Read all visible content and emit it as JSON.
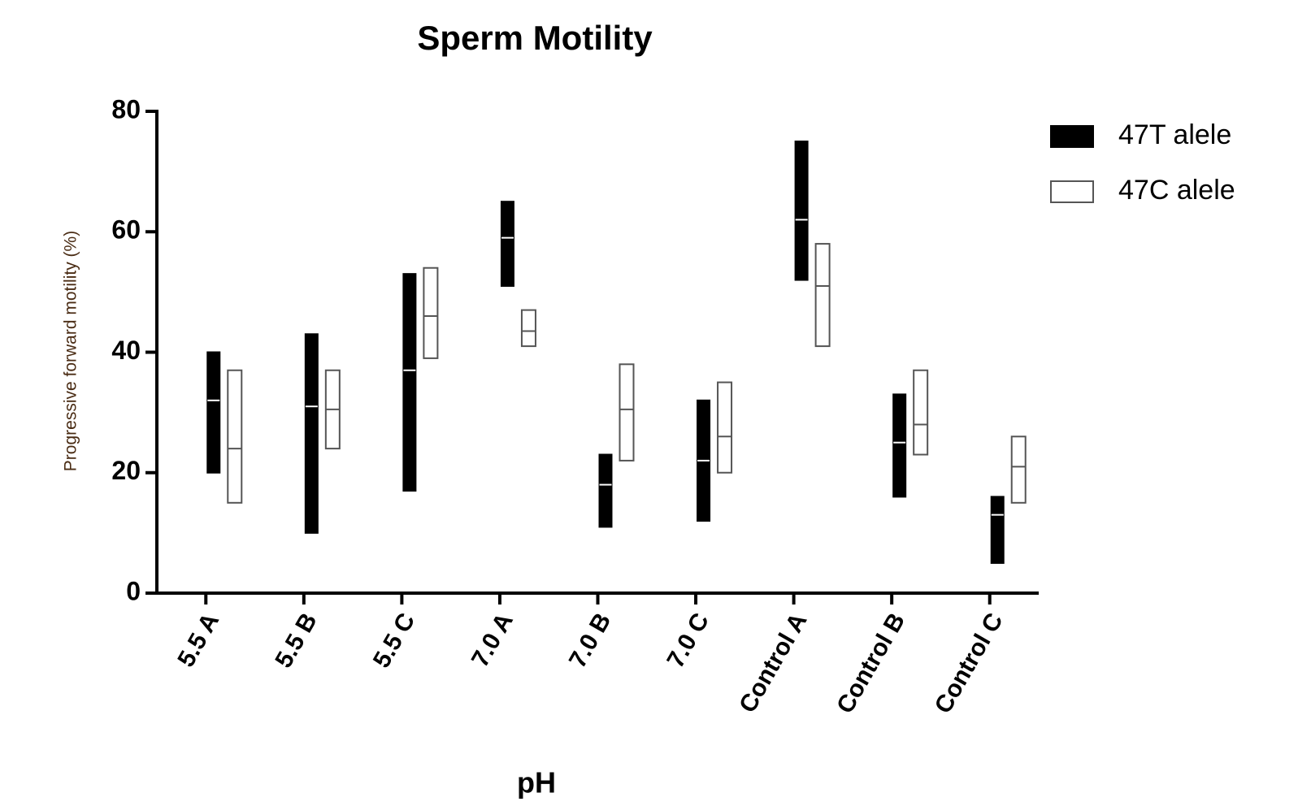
{
  "chart_data": {
    "type": "floating_bar",
    "title": "Sperm Motility",
    "x_label": "pH",
    "y_label": "Progressive forward motility (%)",
    "categories": [
      "5.5 A",
      "5.5 B",
      "5.5 C",
      "7.0 A",
      "7.0 B",
      "7.0 C",
      "Control A",
      "Control B",
      "Control C"
    ],
    "series": [
      {
        "name": "47T alele",
        "color": "#000000",
        "low": [
          20,
          10,
          17,
          51,
          11,
          12,
          52,
          16,
          5
        ],
        "high": [
          40,
          43,
          53,
          65,
          23,
          32,
          75,
          33,
          16
        ],
        "median": [
          32,
          31,
          37,
          59,
          18,
          22,
          62,
          25,
          13
        ]
      },
      {
        "name": "47C alele",
        "color": "#ffffff",
        "low": [
          15,
          24,
          39,
          41,
          22,
          20,
          41,
          23,
          15
        ],
        "high": [
          37,
          37,
          54,
          47,
          38,
          35,
          58,
          37,
          26
        ],
        "median": [
          24,
          30.5,
          46,
          43.5,
          30.5,
          26,
          51,
          28,
          21
        ]
      }
    ],
    "ylim": [
      0,
      80
    ],
    "yticks": [
      0,
      20,
      40,
      60,
      80
    ],
    "legend": "top-right"
  }
}
